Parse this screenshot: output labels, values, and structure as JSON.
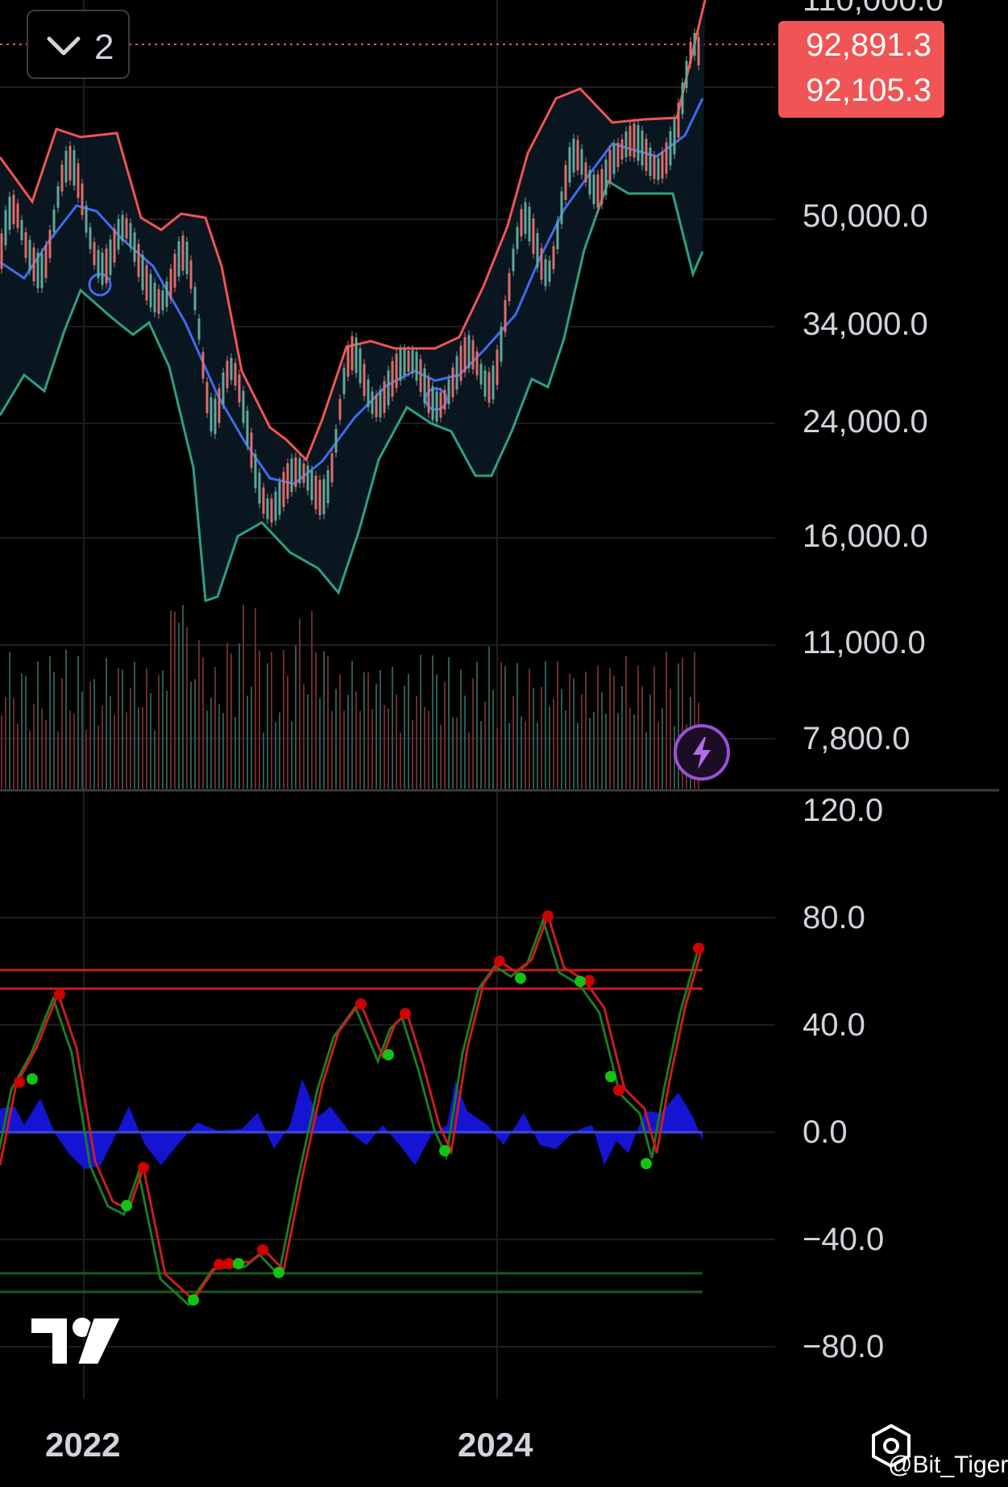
{
  "toolbar": {
    "collapse_count": "2"
  },
  "price_badge": {
    "price_a": "92,891.3",
    "price_b": "92,105.3",
    "color": "#f05454"
  },
  "price_axis": {
    "top_clipped": "110,000.0",
    "ticks": [
      "50,000.0",
      "34,000.0",
      "24,000.0",
      "16,000.0",
      "11,000.0",
      "7,800.0"
    ]
  },
  "osc_axis": {
    "ticks": [
      "120.0",
      "80.0",
      "40.0",
      "0.0",
      "−40.0",
      "−80.0"
    ]
  },
  "time_axis": {
    "labels": [
      "2022",
      "2024"
    ]
  },
  "watermark": {
    "handle": "@Bit_Tiger"
  },
  "icons": {
    "collapse": "chevron-down-icon",
    "alert": "lightning-icon",
    "logo": "tradingview-logo",
    "watermark": "hexagon-eye-icon"
  },
  "colors": {
    "upper_band": "#f05454",
    "basis": "#3d6bf0",
    "lower_band": "#2e9f83",
    "candle_up": "#5fa89a",
    "candle_down": "#e06b6b",
    "osc_fast": "#c81d1d",
    "osc_slow": "#1f7a1f",
    "histogram": "#1414d2",
    "overbought_line": "#c81d1d",
    "oversold_line": "#1a5a1a",
    "dot_red": "#d00000",
    "dot_green": "#13c313"
  }
}
